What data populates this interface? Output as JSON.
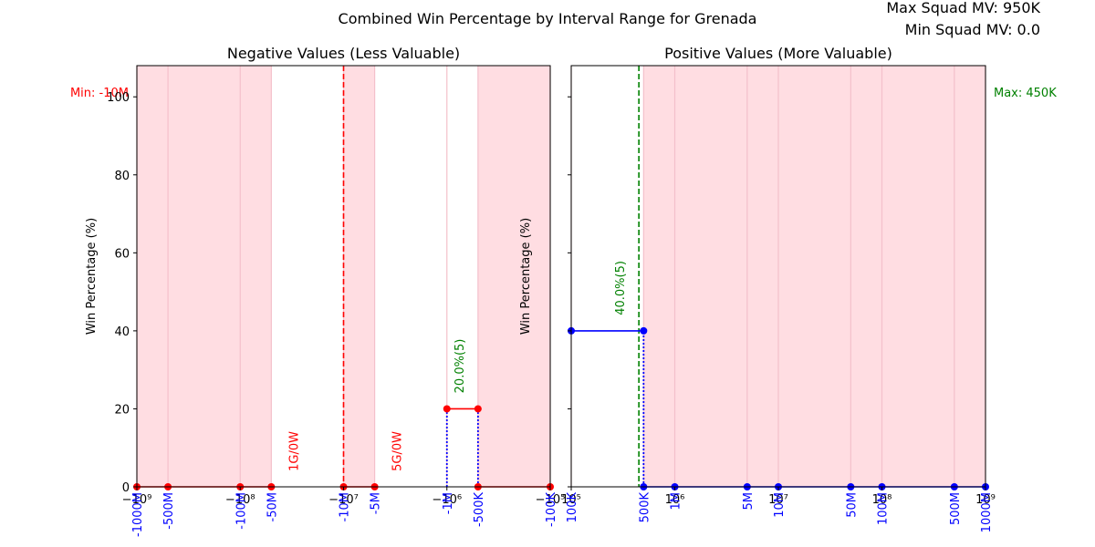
{
  "title": "Combined Win Percentage by Interval Range for Grenada",
  "info": {
    "max_squad_mv": "Max Squad MV: 950K",
    "min_squad_mv": "Min Squad MV: 0.0"
  },
  "chart_data": [
    {
      "type": "line",
      "panel": "left",
      "title": "Negative Values (Less Valuable)",
      "ylabel": "Win Percentage (%)",
      "xscale": "symlog",
      "xlim": [
        -1000000000,
        -100000
      ],
      "ylim": [
        0,
        108
      ],
      "yticks": [
        0,
        20,
        40,
        60,
        80,
        100
      ],
      "xticks": [
        {
          "value": -1000000000,
          "label": "−10⁹"
        },
        {
          "value": -100000000,
          "label": "−10⁸"
        },
        {
          "value": -10000000,
          "label": "−10⁷"
        },
        {
          "value": -1000000,
          "label": "−10⁶"
        },
        {
          "value": -100000,
          "label": "−10⁵"
        }
      ],
      "interval_labels": [
        {
          "value": -1000000000,
          "label": "-1000M"
        },
        {
          "value": -500000000,
          "label": "-500M"
        },
        {
          "value": -100000000,
          "label": "-100M"
        },
        {
          "value": -50000000,
          "label": "-50M"
        },
        {
          "value": -10000000,
          "label": "-10M"
        },
        {
          "value": -5000000,
          "label": "-5M"
        },
        {
          "value": -1000000,
          "label": "-1M"
        },
        {
          "value": -500000,
          "label": "-500K"
        },
        {
          "value": -100000,
          "label": "-100K"
        }
      ],
      "shaded_ranges": [
        [
          -1000000000,
          -500000000
        ],
        [
          -500000000,
          -100000000
        ],
        [
          -100000000,
          -50000000
        ],
        [
          -10000000,
          -5000000
        ],
        [
          -500000,
          -100000
        ]
      ],
      "series": [
        {
          "color": "#ff0000",
          "points": [
            [
              -1000000000,
              0
            ],
            [
              -500000000,
              0
            ],
            [
              -100000000,
              0
            ],
            [
              -50000000,
              0
            ],
            [
              -10000000,
              0
            ],
            [
              -5000000,
              0
            ],
            [
              -1000000,
              20
            ],
            [
              -500000,
              20
            ],
            [
              -500000,
              0
            ],
            [
              -100000,
              0
            ]
          ],
          "segments": [
            [
              [
                -1000000000,
                0
              ],
              [
                -500000000,
                0
              ]
            ],
            [
              [
                -500000000,
                0
              ],
              [
                -100000000,
                0
              ]
            ],
            [
              [
                -100000000,
                0
              ],
              [
                -50000000,
                0
              ]
            ],
            [
              [
                -10000000,
                0
              ],
              [
                -5000000,
                0
              ]
            ],
            [
              [
                -1000000,
                20
              ],
              [
                -500000,
                20
              ]
            ],
            [
              [
                -500000,
                0
              ],
              [
                -100000,
                0
              ]
            ]
          ]
        }
      ],
      "dotted_verticals": [
        {
          "x": -1000000,
          "y": 20,
          "color": "#0000ff"
        },
        {
          "x": -500000,
          "y": 20,
          "color": "#0000ff"
        }
      ],
      "reference_line": {
        "x": -10000000,
        "color": "#ff0000",
        "label": "Min: -10M"
      },
      "annotations": [
        {
          "x": -30000000,
          "y": 4,
          "text": "1G/0W",
          "color": "#ff0000"
        },
        {
          "x": -3000000,
          "y": 4,
          "text": "5G/0W",
          "color": "#ff0000"
        },
        {
          "x": -750000,
          "y": 24,
          "text": "20.0%(5)",
          "color": "#008000"
        }
      ]
    },
    {
      "type": "line",
      "panel": "right",
      "title": "Positive Values (More Valuable)",
      "ylabel": "Win Percentage (%)",
      "xscale": "log",
      "xlim": [
        100000,
        1000000000
      ],
      "ylim": [
        0,
        108
      ],
      "xticks": [
        {
          "value": 100000,
          "label": "10⁵"
        },
        {
          "value": 1000000,
          "label": "10⁶"
        },
        {
          "value": 10000000,
          "label": "10⁷"
        },
        {
          "value": 100000000,
          "label": "10⁸"
        },
        {
          "value": 1000000000,
          "label": "10⁹"
        }
      ],
      "interval_labels": [
        {
          "value": 100000,
          "label": "100K"
        },
        {
          "value": 500000,
          "label": "500K"
        },
        {
          "value": 1000000,
          "label": "1M"
        },
        {
          "value": 5000000,
          "label": "5M"
        },
        {
          "value": 10000000,
          "label": "10M"
        },
        {
          "value": 50000000,
          "label": "50M"
        },
        {
          "value": 100000000,
          "label": "100M"
        },
        {
          "value": 500000000,
          "label": "500M"
        },
        {
          "value": 1000000000,
          "label": "1000M"
        }
      ],
      "shaded_ranges": [
        [
          500000,
          1000000
        ],
        [
          1000000,
          5000000
        ],
        [
          5000000,
          10000000
        ],
        [
          10000000,
          50000000
        ],
        [
          50000000,
          100000000
        ],
        [
          100000000,
          500000000
        ],
        [
          500000000,
          1000000000
        ]
      ],
      "series": [
        {
          "color": "#0000ff",
          "points": [
            [
              100000,
              40
            ],
            [
              500000,
              40
            ],
            [
              500000,
              0
            ],
            [
              1000000,
              0
            ],
            [
              5000000,
              0
            ],
            [
              10000000,
              0
            ],
            [
              50000000,
              0
            ],
            [
              100000000,
              0
            ],
            [
              500000000,
              0
            ],
            [
              1000000000,
              0
            ]
          ],
          "segments": [
            [
              [
                100000,
                40
              ],
              [
                500000,
                40
              ]
            ],
            [
              [
                500000,
                0
              ],
              [
                1000000,
                0
              ]
            ],
            [
              [
                1000000,
                0
              ],
              [
                5000000,
                0
              ]
            ],
            [
              [
                5000000,
                0
              ],
              [
                10000000,
                0
              ]
            ],
            [
              [
                10000000,
                0
              ],
              [
                50000000,
                0
              ]
            ],
            [
              [
                50000000,
                0
              ],
              [
                100000000,
                0
              ]
            ],
            [
              [
                100000000,
                0
              ],
              [
                500000000,
                0
              ]
            ],
            [
              [
                500000000,
                0
              ],
              [
                1000000000,
                0
              ]
            ]
          ]
        }
      ],
      "dotted_verticals": [
        {
          "x": 500000,
          "y": 40,
          "color": "#0000ff"
        }
      ],
      "reference_line": {
        "x": 450000,
        "color": "#008000",
        "label": "Max: 450K"
      },
      "annotations": [
        {
          "x": 300000,
          "y": 44,
          "text": "40.0%(5)",
          "color": "#008000"
        }
      ]
    }
  ]
}
